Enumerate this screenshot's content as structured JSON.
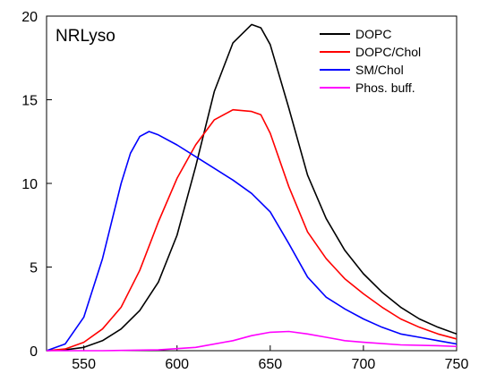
{
  "chart_data": {
    "type": "line",
    "title": "NRLyso",
    "xlabel": "",
    "ylabel": "",
    "xlim": [
      530,
      750
    ],
    "ylim": [
      0,
      20
    ],
    "x_ticks": [
      "550",
      "600",
      "650",
      "700",
      "750"
    ],
    "y_ticks": [
      "0",
      "5",
      "10",
      "15",
      "20"
    ],
    "grid": false,
    "legend_position": "top-right",
    "series": [
      {
        "name": "DOPC",
        "color": "#000000",
        "x": [
          530,
          540,
          550,
          560,
          570,
          580,
          590,
          600,
          610,
          620,
          630,
          640,
          645,
          650,
          660,
          670,
          680,
          690,
          700,
          710,
          720,
          730,
          740,
          750
        ],
        "y": [
          0.0,
          0.05,
          0.2,
          0.6,
          1.3,
          2.4,
          4.1,
          6.9,
          11.0,
          15.5,
          18.4,
          19.5,
          19.3,
          18.3,
          14.5,
          10.5,
          7.9,
          6.0,
          4.6,
          3.5,
          2.6,
          1.9,
          1.4,
          1.0
        ]
      },
      {
        "name": "DOPC/Chol",
        "color": "#ff0000",
        "x": [
          530,
          540,
          550,
          560,
          570,
          580,
          590,
          600,
          610,
          620,
          630,
          640,
          645,
          650,
          660,
          670,
          680,
          690,
          700,
          710,
          720,
          730,
          740,
          750
        ],
        "y": [
          0.0,
          0.1,
          0.5,
          1.3,
          2.6,
          4.8,
          7.7,
          10.3,
          12.3,
          13.8,
          14.4,
          14.3,
          14.1,
          13.0,
          9.8,
          7.1,
          5.5,
          4.3,
          3.4,
          2.6,
          1.9,
          1.4,
          1.0,
          0.7
        ]
      },
      {
        "name": "SM/Chol",
        "color": "#0000ff",
        "x": [
          530,
          540,
          550,
          560,
          570,
          575,
          580,
          585,
          590,
          600,
          610,
          620,
          630,
          640,
          650,
          660,
          670,
          680,
          690,
          700,
          710,
          720,
          730,
          740,
          750
        ],
        "y": [
          0.0,
          0.4,
          2.0,
          5.5,
          10.0,
          11.8,
          12.8,
          13.1,
          12.9,
          12.3,
          11.6,
          10.9,
          10.2,
          9.4,
          8.3,
          6.4,
          4.4,
          3.2,
          2.5,
          1.9,
          1.4,
          1.0,
          0.8,
          0.6,
          0.4
        ]
      },
      {
        "name": "Phos. buff.",
        "color": "#ff00ff",
        "x": [
          530,
          560,
          590,
          610,
          630,
          640,
          650,
          660,
          670,
          680,
          690,
          700,
          720,
          740,
          750
        ],
        "y": [
          0.0,
          0.0,
          0.05,
          0.2,
          0.6,
          0.9,
          1.1,
          1.15,
          1.0,
          0.8,
          0.6,
          0.5,
          0.35,
          0.3,
          0.25
        ]
      }
    ]
  }
}
